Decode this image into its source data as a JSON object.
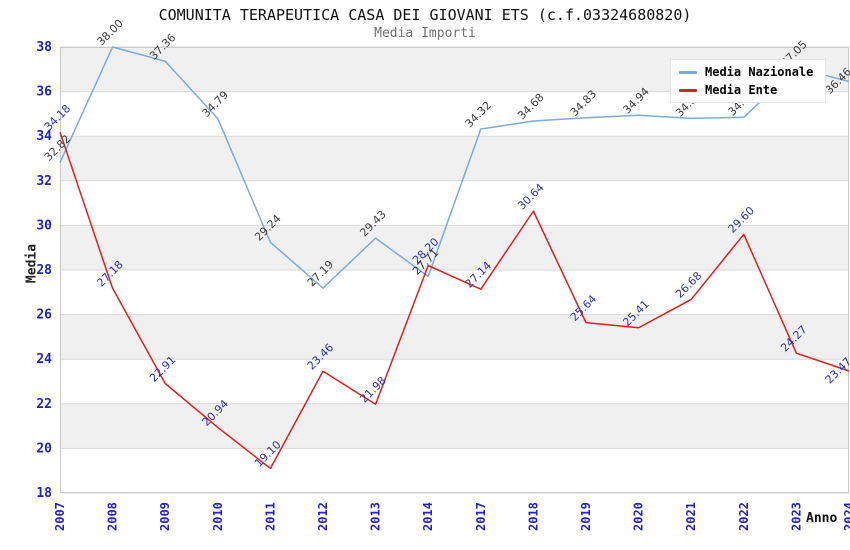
{
  "header": {
    "title": "COMUNITA TERAPEUTICA CASA DEI GIOVANI ETS (c.f.03324680820)",
    "subtitle": "Media Importi"
  },
  "axes": {
    "x_title": "Anno",
    "y_title": "Media"
  },
  "legend": {
    "position": "top-right",
    "items": [
      {
        "label": "Media Nazionale",
        "color": "#7aabdf"
      },
      {
        "label": "Media Ente",
        "color": "#e51c1c"
      }
    ]
  },
  "chart_data": {
    "type": "line",
    "title": "COMUNITA TERAPEUTICA CASA DEI GIOVANI ETS (c.f.03324680820)",
    "subtitle": "Media Importi",
    "xlabel": "Anno",
    "ylabel": "Media",
    "categories": [
      "2007",
      "2008",
      "2009",
      "2010",
      "2011",
      "2012",
      "2013",
      "2014",
      "2017",
      "2018",
      "2019",
      "2020",
      "2021",
      "2022",
      "2023",
      "2024"
    ],
    "ylim": [
      18,
      38
    ],
    "y_ticks": [
      18,
      20,
      22,
      24,
      26,
      28,
      30,
      32,
      34,
      36,
      38
    ],
    "grid": true,
    "background_bands": true,
    "legend_position": "top-right",
    "style": {
      "tick_label_color": "#2222cc",
      "grid_color": "#d9d9d9",
      "band_color": "#f0f0f0",
      "plot_border_color": "#c9c9c9"
    },
    "series": [
      {
        "name": "Media Nazionale",
        "color": "#7aabdf",
        "label_color": "#3d3d3d",
        "values": [
          32.82,
          38.0,
          37.36,
          34.79,
          29.24,
          27.19,
          29.43,
          27.71,
          34.32,
          34.68,
          34.83,
          34.94,
          34.8,
          34.85,
          37.05,
          36.46
        ],
        "approx_value_indices": [
          12,
          13
        ]
      },
      {
        "name": "Media Ente",
        "color": "#e51c1c",
        "label_color": "#2f2fae",
        "values": [
          34.18,
          27.18,
          22.91,
          20.94,
          19.1,
          23.46,
          21.98,
          28.2,
          27.14,
          30.64,
          25.64,
          25.41,
          26.68,
          29.6,
          24.27,
          23.47
        ]
      }
    ]
  }
}
